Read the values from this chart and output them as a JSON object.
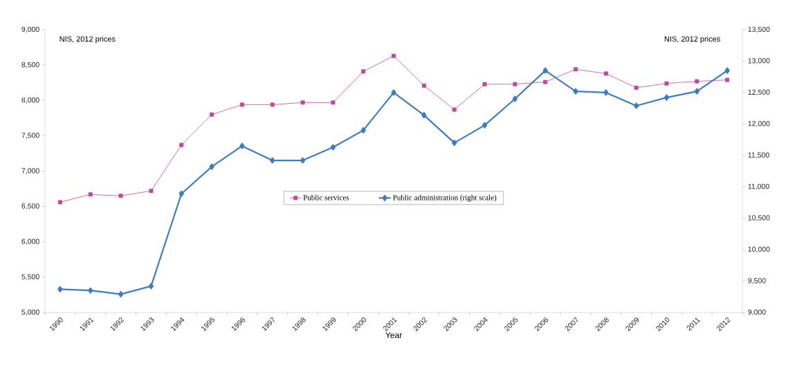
{
  "chart_data": {
    "type": "line",
    "categories": [
      "1990",
      "1991",
      "1992",
      "1993",
      "1994",
      "1995",
      "1996",
      "1997",
      "1998",
      "1999",
      "2000",
      "2001",
      "2002",
      "2003",
      "2004",
      "2005",
      "2006",
      "2007",
      "2008",
      "2009",
      "2010",
      "2011",
      "2012"
    ],
    "xlabel": "Year",
    "annotations": [
      "NIS, 2012 prices",
      "NIS, 2012 prices"
    ],
    "series": [
      {
        "name": "Public services",
        "color": "#c0479d",
        "marker": "square",
        "values": [
          6560,
          6670,
          6650,
          6720,
          7370,
          7800,
          7940,
          7940,
          7970,
          7970,
          8410,
          8630,
          8210,
          7870,
          8230,
          8230,
          8260,
          8440,
          8380,
          8180,
          8240,
          8270,
          8290
        ]
      },
      {
        "name": "Public administration (right scale)",
        "color": "#3e7bc1",
        "marker": "diamond",
        "axis": "y2",
        "values": [
          9370,
          9350,
          9290,
          9420,
          10890,
          11320,
          11650,
          11420,
          11420,
          11630,
          11900,
          12500,
          12140,
          11700,
          11980,
          12400,
          12850,
          12520,
          12500,
          12290,
          12420,
          12520,
          12850
        ]
      }
    ],
    "ylim": [
      5000,
      9000
    ],
    "yticks": [
      {
        "value": 5000,
        "label": "5,000"
      },
      {
        "value": 5500,
        "label": "5,500"
      },
      {
        "value": 6000,
        "label": "6,000"
      },
      {
        "value": 6500,
        "label": "6,500"
      },
      {
        "value": 7000,
        "label": "7,000"
      },
      {
        "value": 7500,
        "label": "7,500"
      },
      {
        "value": 8000,
        "label": "8,000"
      },
      {
        "value": 8500,
        "label": "8,500"
      },
      {
        "value": 9000,
        "label": "9,000"
      }
    ],
    "y2lim": [
      9000,
      13500
    ],
    "y2ticks": [
      {
        "value": 9000,
        "label": "9,000"
      },
      {
        "value": 9500,
        "label": "9,500"
      },
      {
        "value": 10000,
        "label": "10,000"
      },
      {
        "value": 10500,
        "label": "10,500"
      },
      {
        "value": 11000,
        "label": "11,000"
      },
      {
        "value": 11500,
        "label": "11,500"
      },
      {
        "value": 12000,
        "label": "12,000"
      },
      {
        "value": 12500,
        "label": "12,500"
      },
      {
        "value": 13000,
        "label": "13,000"
      },
      {
        "value": 13500,
        "label": "13,500"
      }
    ],
    "grid": false,
    "legend": "center"
  }
}
